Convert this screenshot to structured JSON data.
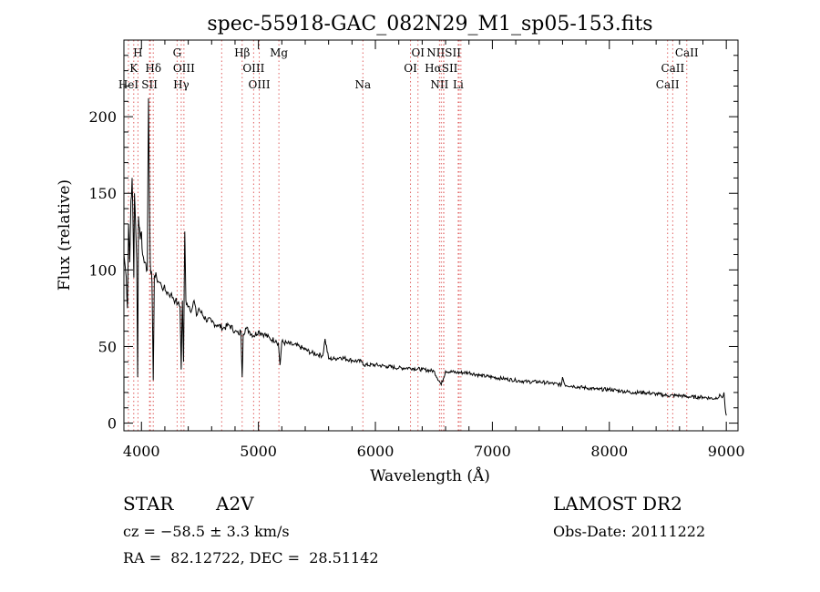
{
  "chart_data": {
    "type": "line",
    "title": "spec-55918-GAC_082N29_M1_sp05-153.fits",
    "xlabel": "Wavelength (Å)",
    "ylabel": "Flux (relative)",
    "xlim": [
      3850,
      9100
    ],
    "ylim": [
      -5,
      250
    ],
    "x_ticks": [
      4000,
      5000,
      6000,
      7000,
      8000,
      9000
    ],
    "y_ticks": [
      0,
      50,
      100,
      150,
      200
    ],
    "grid": false,
    "series": [
      {
        "x": [
          3850,
          3870,
          3880,
          3890,
          3900,
          3910,
          3920,
          3930,
          3935,
          3940,
          3950,
          3960,
          3968,
          3975,
          3990,
          4000,
          4010,
          4030,
          4050,
          4060,
          4075,
          4090,
          4101,
          4110,
          4130,
          4150,
          4170,
          4190,
          4210,
          4230,
          4250,
          4270,
          4290,
          4310,
          4330,
          4340,
          4350,
          4360,
          4370,
          4380,
          4390,
          4410,
          4430,
          4450,
          4470,
          4490,
          4510,
          4550,
          4600,
          4650,
          4700,
          4750,
          4800,
          4830,
          4850,
          4861,
          4870,
          4890,
          4920,
          4960,
          5000,
          5050,
          5100,
          5150,
          5170,
          5185,
          5200,
          5250,
          5300,
          5350,
          5400,
          5450,
          5500,
          5550,
          5570,
          5600,
          5650,
          5700,
          5800,
          5890,
          5900,
          6000,
          6100,
          6200,
          6300,
          6400,
          6500,
          6563,
          6600,
          6700,
          6800,
          6900,
          7000,
          7100,
          7200,
          7300,
          7400,
          7500,
          7590,
          7600,
          7620,
          7700,
          7800,
          7900,
          8000,
          8100,
          8200,
          8300,
          8400,
          8500,
          8600,
          8700,
          8800,
          8900,
          8950,
          8970,
          8980,
          8990,
          9000
        ],
        "y": [
          110,
          95,
          75,
          130,
          105,
          145,
          160,
          120,
          95,
          150,
          130,
          105,
          30,
          135,
          120,
          125,
          110,
          105,
          100,
          212,
          105,
          92,
          28,
          96,
          95,
          92,
          90,
          88,
          86,
          85,
          84,
          82,
          80,
          78,
          76,
          35,
          80,
          40,
          125,
          80,
          78,
          76,
          74,
          80,
          70,
          75,
          72,
          68,
          66,
          64,
          62,
          64,
          60,
          58,
          60,
          30,
          58,
          62,
          60,
          57,
          60,
          58,
          55,
          54,
          52,
          38,
          53,
          52,
          51,
          50,
          48,
          46,
          45,
          44,
          55,
          42,
          42,
          43,
          41,
          40,
          38,
          38,
          37,
          36,
          36,
          35,
          34,
          25,
          34,
          33,
          33,
          31,
          30,
          29,
          28,
          27,
          27,
          26,
          25,
          30,
          25,
          24,
          23,
          22,
          22,
          21,
          20,
          20,
          19,
          18,
          18,
          17,
          17,
          16,
          18,
          17,
          20,
          10,
          5
        ]
      }
    ],
    "lines_top": [
      {
        "label": "H",
        "x": 3970
      },
      {
        "label": "G",
        "x": 4305
      },
      {
        "label": "Hβ",
        "x": 4861
      },
      {
        "label": "Mg",
        "x": 5175
      },
      {
        "label": "OI",
        "x": 6364
      },
      {
        "label": "NIISII",
        "x": 6585
      },
      {
        "label": "CaII",
        "x": 8662
      }
    ],
    "lines_mid": [
      {
        "label": "K",
        "x": 3934
      },
      {
        "label": "Hδ",
        "x": 4101
      },
      {
        "label": "OIII",
        "x": 4363
      },
      {
        "label": "OIII",
        "x": 4959
      },
      {
        "label": "OI",
        "x": 6300
      },
      {
        "label": "HαSII",
        "x": 6563
      },
      {
        "label": "CaII",
        "x": 8542
      }
    ],
    "lines_low": [
      {
        "label": "HeI",
        "x": 3889
      },
      {
        "label": "SII",
        "x": 4069
      },
      {
        "label": "Hγ",
        "x": 4340
      },
      {
        "label": "OIII",
        "x": 5007
      },
      {
        "label": "Na",
        "x": 5893
      },
      {
        "label": "NII",
        "x": 6548
      },
      {
        "label": "Li",
        "x": 6708
      },
      {
        "label": "CaII",
        "x": 8498
      }
    ],
    "extra_lines_x": [
      4076,
      4686,
      6583,
      6716,
      6731
    ],
    "line_color": "#e06060"
  },
  "info": {
    "class_label": "STAR",
    "subclass": "A2V",
    "survey": "LAMOST DR2",
    "cz": "cz = −58.5 ± 3.3 km/s",
    "obs_date": "Obs-Date: 20111222",
    "coords": "RA =  82.12722, DEC =  28.51142"
  }
}
